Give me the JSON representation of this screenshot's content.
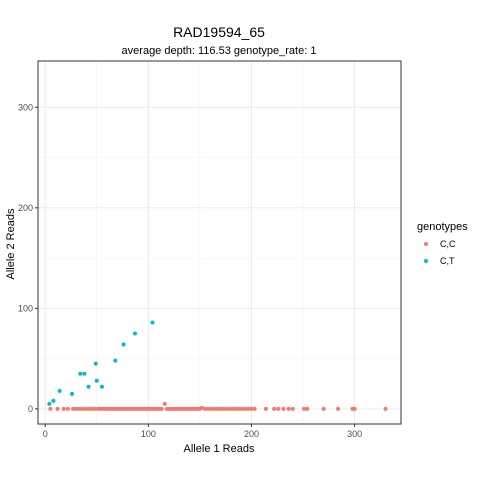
{
  "chart_data": {
    "type": "scatter",
    "title": "RAD19594_65",
    "subtitle": "average depth:  116.53  genotype_rate:  1",
    "xlabel": "Allele 1 Reads",
    "ylabel": "Allele 2 Reads",
    "xlim": [
      -7,
      345
    ],
    "ylim": [
      -15,
      346
    ],
    "xticks": [
      0,
      100,
      200,
      300
    ],
    "yticks": [
      0,
      100,
      200,
      300
    ],
    "grid": true,
    "legend": {
      "title": "genotypes",
      "position": "right"
    },
    "series": [
      {
        "name": "C,C",
        "color": "#F8766D",
        "points": [
          [
            5,
            0
          ],
          [
            12,
            0
          ],
          [
            18,
            0
          ],
          [
            22,
            0
          ],
          [
            27,
            0
          ],
          [
            30,
            0
          ],
          [
            33,
            0
          ],
          [
            36,
            0
          ],
          [
            39,
            0
          ],
          [
            42,
            0
          ],
          [
            45,
            0
          ],
          [
            48,
            0
          ],
          [
            51,
            0
          ],
          [
            53,
            0
          ],
          [
            55,
            0
          ],
          [
            57,
            0
          ],
          [
            59,
            0
          ],
          [
            61,
            0
          ],
          [
            63,
            0
          ],
          [
            65,
            0
          ],
          [
            67,
            0
          ],
          [
            69,
            0
          ],
          [
            71,
            0
          ],
          [
            73,
            0
          ],
          [
            75,
            0
          ],
          [
            77,
            0
          ],
          [
            79,
            0
          ],
          [
            81,
            0
          ],
          [
            83,
            0
          ],
          [
            85,
            0
          ],
          [
            87,
            0
          ],
          [
            89,
            0
          ],
          [
            91,
            0
          ],
          [
            93,
            0
          ],
          [
            95,
            0
          ],
          [
            97,
            0
          ],
          [
            99,
            0
          ],
          [
            101,
            0
          ],
          [
            103,
            0
          ],
          [
            105,
            0
          ],
          [
            107,
            0
          ],
          [
            109,
            0
          ],
          [
            111,
            0
          ],
          [
            113,
            0
          ],
          [
            116,
            5
          ],
          [
            118,
            0
          ],
          [
            120,
            0
          ],
          [
            122,
            0
          ],
          [
            124,
            0
          ],
          [
            126,
            0
          ],
          [
            128,
            0
          ],
          [
            130,
            0
          ],
          [
            132,
            0
          ],
          [
            134,
            0
          ],
          [
            136,
            0
          ],
          [
            138,
            0
          ],
          [
            140,
            0
          ],
          [
            142,
            0
          ],
          [
            144,
            0
          ],
          [
            146,
            0
          ],
          [
            148,
            0
          ],
          [
            150,
            0
          ],
          [
            152,
            1
          ],
          [
            155,
            0
          ],
          [
            158,
            0
          ],
          [
            161,
            0
          ],
          [
            164,
            0
          ],
          [
            167,
            0
          ],
          [
            170,
            0
          ],
          [
            173,
            0
          ],
          [
            176,
            0
          ],
          [
            179,
            0
          ],
          [
            182,
            0
          ],
          [
            185,
            0
          ],
          [
            188,
            0
          ],
          [
            191,
            0
          ],
          [
            194,
            0
          ],
          [
            197,
            0
          ],
          [
            200,
            0
          ],
          [
            203,
            0
          ],
          [
            214,
            0
          ],
          [
            222,
            0
          ],
          [
            226,
            0
          ],
          [
            231,
            0
          ],
          [
            236,
            0
          ],
          [
            240,
            0
          ],
          [
            251,
            0
          ],
          [
            254,
            0
          ],
          [
            270,
            0
          ],
          [
            284,
            0
          ],
          [
            298,
            0
          ],
          [
            300,
            0
          ],
          [
            330,
            0
          ]
        ]
      },
      {
        "name": "C,T",
        "color": "#00BFC4",
        "points": [
          [
            4,
            5
          ],
          [
            8,
            8
          ],
          [
            14,
            18
          ],
          [
            26,
            15
          ],
          [
            34,
            35
          ],
          [
            38,
            35
          ],
          [
            42,
            22
          ],
          [
            49,
            45
          ],
          [
            50,
            28
          ],
          [
            55,
            22
          ],
          [
            68,
            48
          ],
          [
            76,
            64
          ],
          [
            87,
            75
          ],
          [
            104,
            86
          ]
        ]
      }
    ]
  }
}
